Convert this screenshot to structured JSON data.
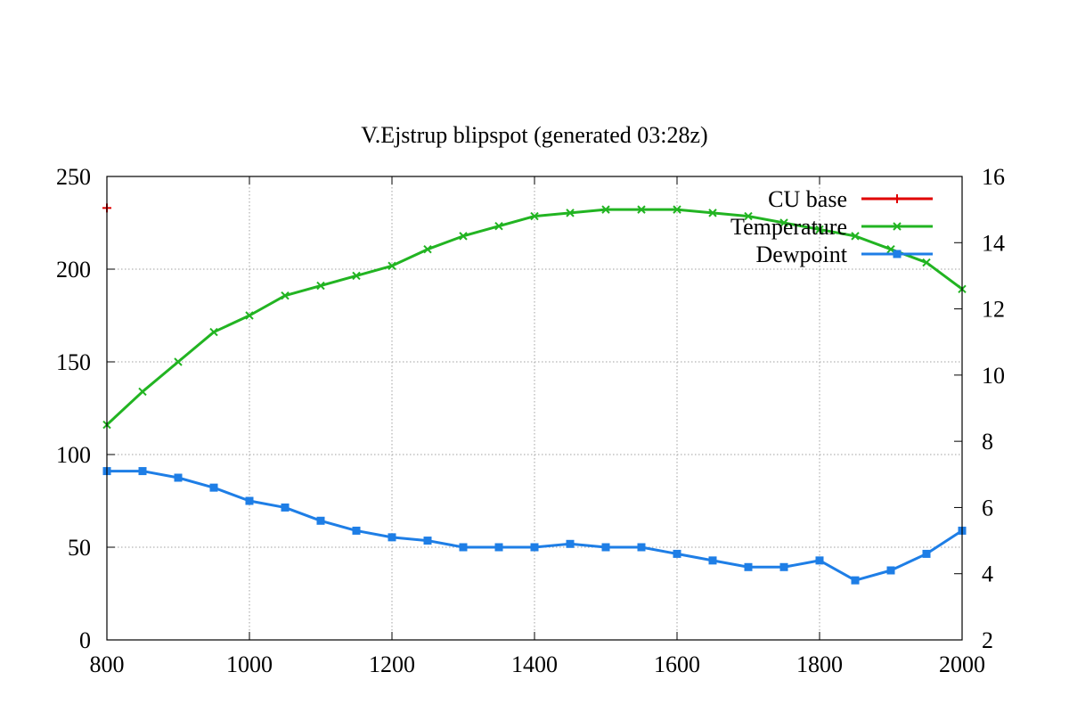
{
  "chart_data": {
    "type": "line",
    "title": "V.Ejstrup  blipspot  (generated  03:28z)",
    "xlabel": "",
    "ylabel": "",
    "y2label": "",
    "xlim": [
      800,
      2000
    ],
    "ylim": [
      0,
      250
    ],
    "y2lim": [
      2,
      16
    ],
    "grid": true,
    "legend_position": "top-right",
    "x_ticks": [
      "800",
      "1000",
      "1200",
      "1400",
      "1600",
      "1800",
      "2000"
    ],
    "y_ticks": [
      "0",
      "50",
      "100",
      "150",
      "200",
      "250"
    ],
    "y2_ticks": [
      "2",
      "4",
      "6",
      "8",
      "10",
      "12",
      "14",
      "16"
    ],
    "series": [
      {
        "name": "CU  base",
        "axis": "y",
        "color": "#e00000",
        "marker": "plus",
        "x": [
          800
        ],
        "values": [
          233
        ]
      },
      {
        "name": "Temperature",
        "axis": "y2",
        "color": "#22b422",
        "marker": "cross",
        "x": [
          800,
          850,
          900,
          950,
          1000,
          1050,
          1100,
          1150,
          1200,
          1250,
          1300,
          1350,
          1400,
          1450,
          1500,
          1550,
          1600,
          1650,
          1700,
          1750,
          1800,
          1850,
          1900,
          1950,
          2000
        ],
        "values": [
          8.5,
          9.5,
          10.4,
          11.3,
          11.8,
          12.4,
          12.7,
          13.0,
          13.3,
          13.8,
          14.2,
          14.5,
          14.8,
          14.9,
          15.0,
          15.0,
          15.0,
          14.9,
          14.8,
          14.6,
          14.4,
          14.2,
          13.8,
          13.4,
          12.6
        ]
      },
      {
        "name": "Dewpoint",
        "axis": "y2",
        "color": "#1e7ee6",
        "marker": "square",
        "x": [
          800,
          850,
          900,
          950,
          1000,
          1050,
          1100,
          1150,
          1200,
          1250,
          1300,
          1350,
          1400,
          1450,
          1500,
          1550,
          1600,
          1650,
          1700,
          1750,
          1800,
          1850,
          1900,
          1950,
          2000
        ],
        "values": [
          7.1,
          7.1,
          6.9,
          6.6,
          6.2,
          6.0,
          5.6,
          5.3,
          5.1,
          5.0,
          4.8,
          4.8,
          4.8,
          4.9,
          4.8,
          4.8,
          4.6,
          4.4,
          4.2,
          4.2,
          4.4,
          3.8,
          4.1,
          4.6,
          5.3
        ]
      }
    ]
  }
}
